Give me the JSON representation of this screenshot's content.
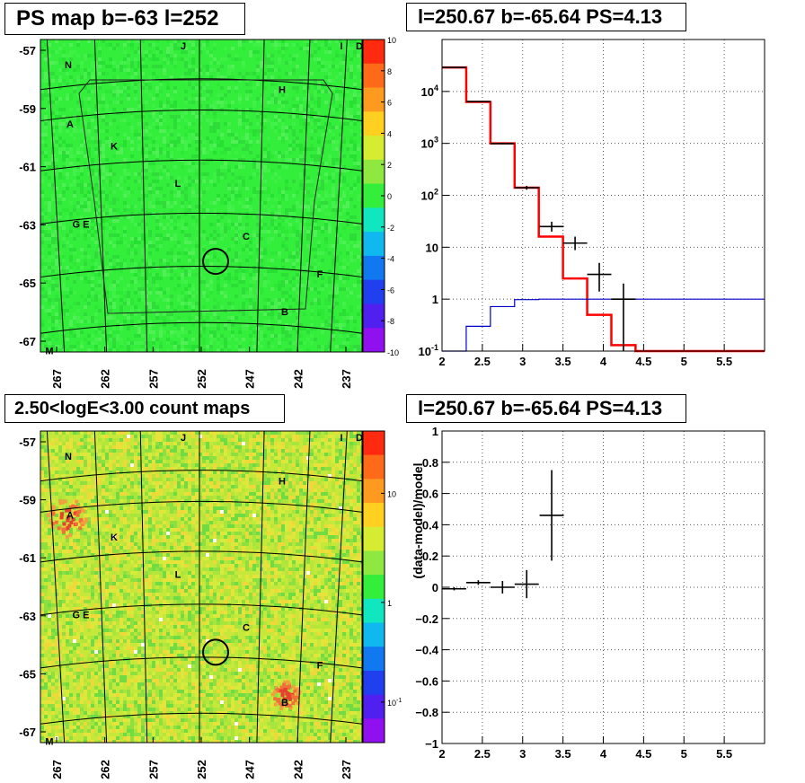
{
  "titles": {
    "ps_map": "PS map b=-63 l=252",
    "spectrum": "l=250.67 b=-65.64 PS=4.13",
    "count_map": "2.50<logE<3.00 count maps",
    "residual": "l=250.67 b=-65.64 PS=4.13"
  },
  "chart_data": [
    {
      "type": "heatmap",
      "title": "PS map b=-63 l=252",
      "x_ticks": [
        "267",
        "262",
        "257",
        "252",
        "247",
        "242",
        "237"
      ],
      "y_ticks": [
        "-57",
        "-59",
        "-61",
        "-63",
        "-65",
        "-67"
      ],
      "colorbar": {
        "min": -10,
        "max": 10,
        "ticks": [
          "10",
          "8",
          "6",
          "4",
          "2",
          "0",
          "-2",
          "-4",
          "-6",
          "-8",
          "-10"
        ]
      },
      "base_color": "#33ee3a",
      "source_labels": [
        "N",
        "A",
        "K",
        "L",
        "G E",
        "J",
        "H",
        "C",
        "F",
        "B",
        "I",
        "D",
        "M"
      ],
      "marked_source": {
        "l": 250.67,
        "b": -65.64
      }
    },
    {
      "type": "line",
      "title": "l=250.67 b=-65.64 PS=4.13",
      "xlim": [
        2,
        6
      ],
      "ylim": [
        0.1,
        100000
      ],
      "log_y": true,
      "grid": true,
      "x_ticks": [
        "2",
        "2.5",
        "3",
        "3.5",
        "4",
        "4.5",
        "5",
        "5.5"
      ],
      "y_ticks": [
        "10^-1",
        "1",
        "10",
        "10^2",
        "10^3",
        "10^4"
      ],
      "bin_edges": [
        2,
        2.3,
        2.6,
        2.9,
        3.2,
        3.5,
        3.8,
        4.1,
        4.4,
        6
      ],
      "series": [
        {
          "values": [
            29000,
            6300,
            1000,
            140,
            16,
            2.5,
            0.5,
            0.13,
            0.1
          ],
          "color": "#ff0000",
          "style": "step"
        },
        {
          "values": [
            0.07,
            0.3,
            0.72,
            0.98,
            1.0,
            1.0,
            1.0,
            1.0,
            1.0
          ],
          "color": "#0000cc",
          "style": "step"
        }
      ],
      "points": [
        {
          "x": 2.15,
          "y": 29000,
          "xerr": 0.15,
          "ylo": 28800,
          "yhi": 29200
        },
        {
          "x": 2.45,
          "y": 6400,
          "xerr": 0.15,
          "ylo": 6300,
          "yhi": 6500
        },
        {
          "x": 2.75,
          "y": 990,
          "xerr": 0.15,
          "ylo": 960,
          "yhi": 1020
        },
        {
          "x": 3.05,
          "y": 140,
          "xerr": 0.15,
          "ylo": 128,
          "yhi": 152
        },
        {
          "x": 3.36,
          "y": 25,
          "xerr": 0.15,
          "ylo": 20,
          "yhi": 31
        },
        {
          "x": 3.65,
          "y": 12,
          "xerr": 0.15,
          "ylo": 8.8,
          "yhi": 16
        },
        {
          "x": 3.95,
          "y": 3.0,
          "xerr": 0.15,
          "ylo": 1.4,
          "yhi": 5.0
        },
        {
          "x": 4.25,
          "y": 1.0,
          "xerr": 0.15,
          "ylo": 0.1,
          "yhi": 2.0
        }
      ]
    },
    {
      "type": "heatmap",
      "title": "2.50<logE<3.00 count maps",
      "x_ticks": [
        "267",
        "262",
        "257",
        "252",
        "247",
        "242",
        "237"
      ],
      "y_ticks": [
        "-57",
        "-59",
        "-61",
        "-63",
        "-65",
        "-67"
      ],
      "colorbar": {
        "log": true,
        "ticks": [
          "10",
          "1",
          "10^-1"
        ]
      },
      "base_color": "#c6e83a",
      "source_labels": [
        "N",
        "A",
        "K",
        "L",
        "G E",
        "J",
        "H",
        "C",
        "F",
        "B",
        "I",
        "D",
        "M"
      ],
      "hotspots": [
        "A",
        "B"
      ],
      "marked_source": {
        "l": 250.67,
        "b": -65.64
      }
    },
    {
      "type": "scatter",
      "title": "l=250.67 b=-65.64 PS=4.13",
      "ylabel": "(data-model)/model",
      "xlim": [
        2,
        6
      ],
      "ylim": [
        -1,
        1
      ],
      "grid": true,
      "x_ticks": [
        "2",
        "2.5",
        "3",
        "3.5",
        "4",
        "4.5",
        "5",
        "5.5"
      ],
      "y_ticks": [
        "1",
        "0.8",
        "0.6",
        "0.4",
        "0.2",
        "0",
        "−0.2",
        "−0.4",
        "−0.6",
        "−0.8",
        "−1"
      ],
      "points": [
        {
          "x": 2.15,
          "y": -0.01,
          "xerr": 0.15,
          "ylo": -0.02,
          "yhi": 0.0
        },
        {
          "x": 2.45,
          "y": 0.03,
          "xerr": 0.15,
          "ylo": 0.015,
          "yhi": 0.045
        },
        {
          "x": 2.75,
          "y": 0.0,
          "xerr": 0.15,
          "ylo": -0.04,
          "yhi": 0.04
        },
        {
          "x": 3.05,
          "y": 0.02,
          "xerr": 0.15,
          "ylo": -0.07,
          "yhi": 0.11
        },
        {
          "x": 3.36,
          "y": 0.46,
          "xerr": 0.15,
          "ylo": 0.17,
          "yhi": 0.75
        }
      ]
    }
  ]
}
